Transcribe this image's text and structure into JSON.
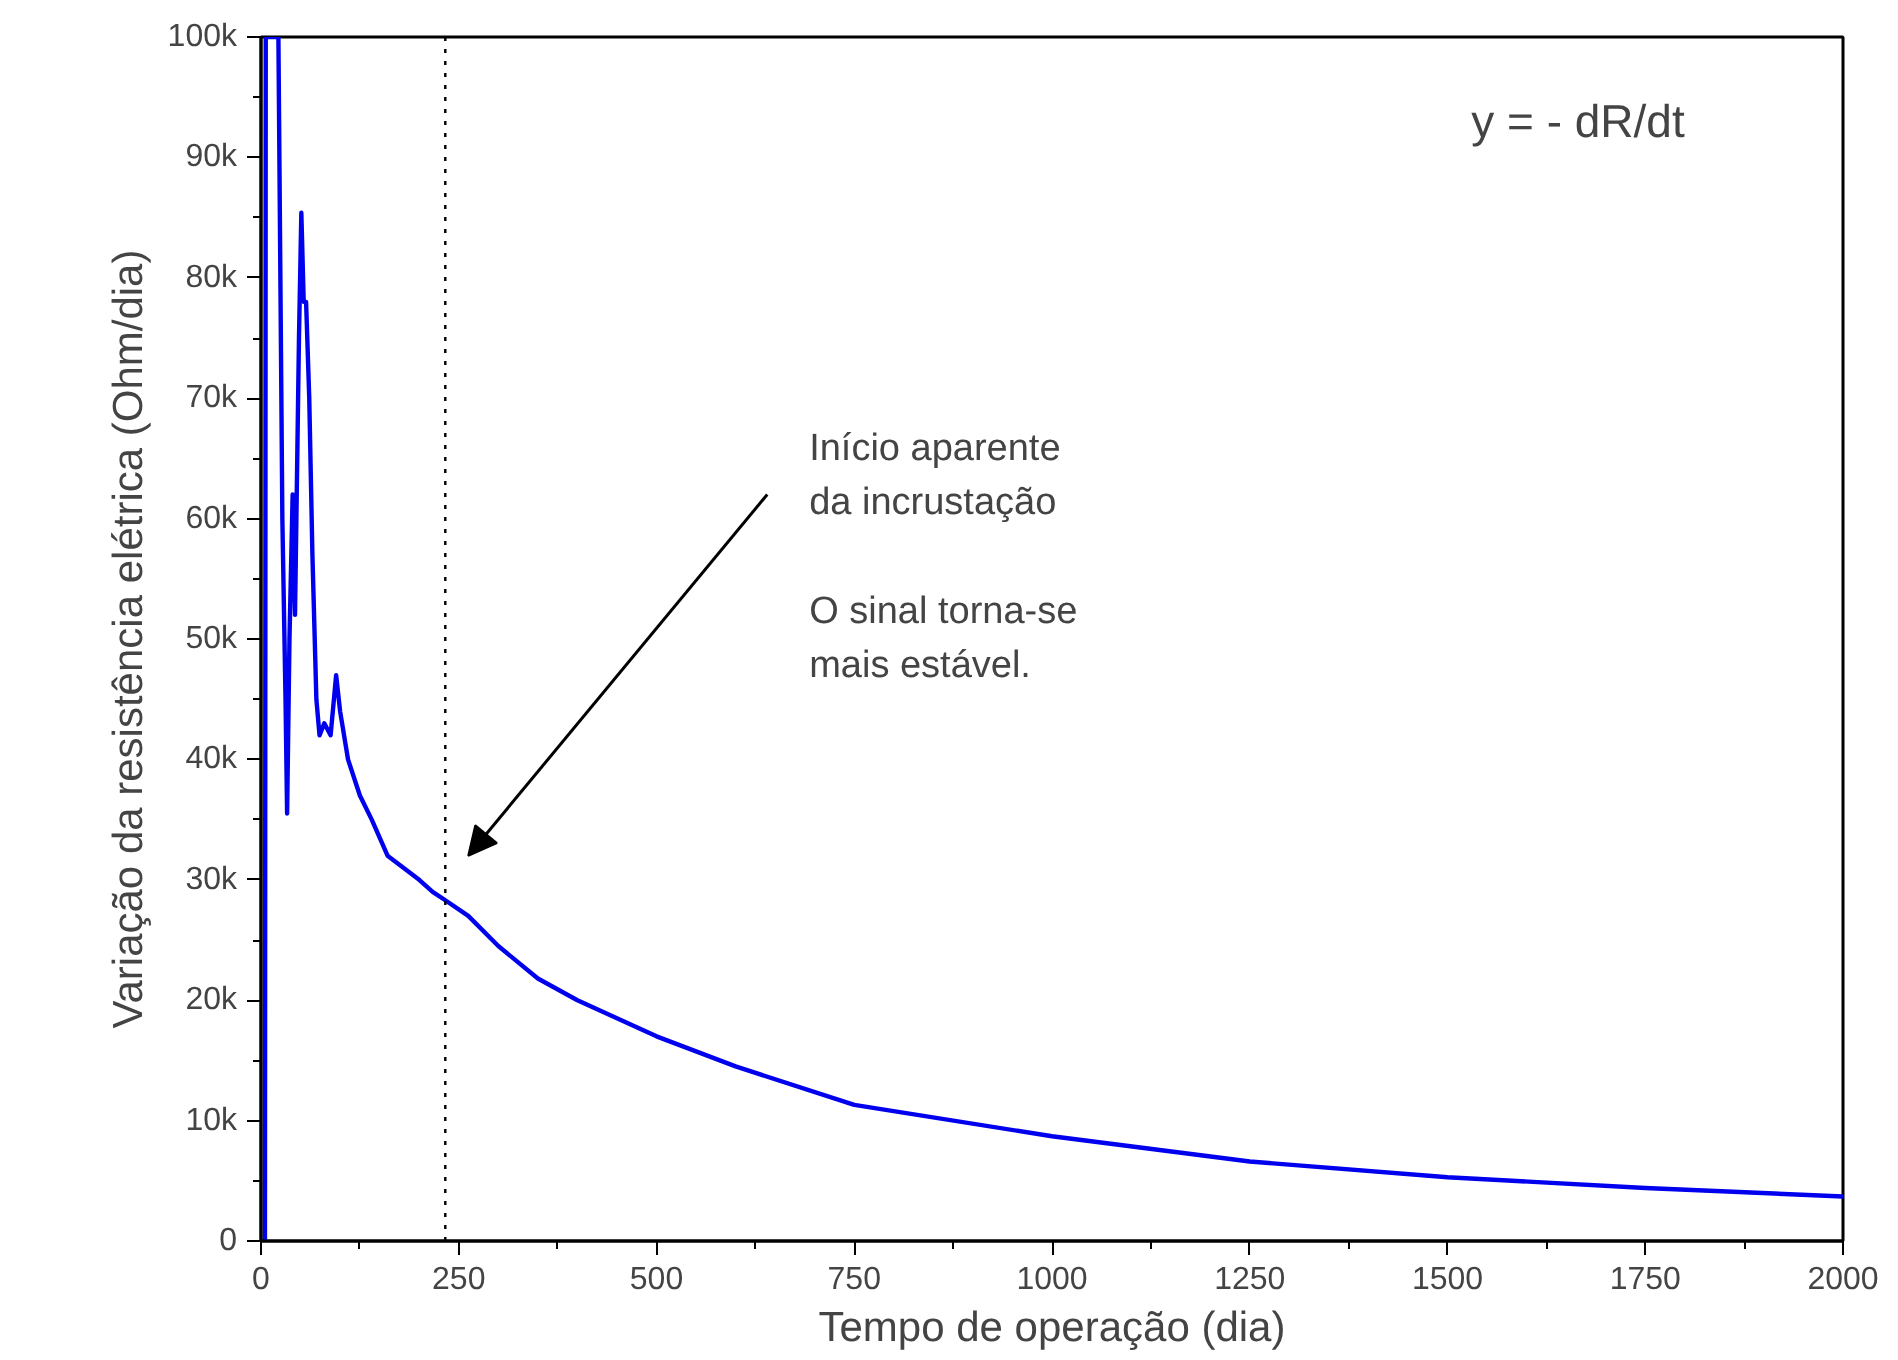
{
  "chart_data": {
    "type": "line",
    "xlabel": "Tempo de operação (dia)",
    "ylabel": "Variação da resistência elétrica (Ohm/dia)",
    "x": [
      0,
      5,
      6,
      22,
      27,
      31,
      33,
      36,
      40,
      43,
      48,
      51,
      54,
      57,
      61,
      65,
      70,
      74,
      80,
      88,
      95,
      100,
      110,
      125,
      140,
      160,
      180,
      200,
      217,
      233,
      262,
      300,
      350,
      400,
      500,
      600,
      750,
      1000,
      1250,
      1500,
      1750,
      2000
    ],
    "series": [
      {
        "color": "#0000ee",
        "values": [
          0,
          0,
          100000,
          100000,
          60000,
          45000,
          35500,
          50000,
          62000,
          52000,
          75000,
          85400,
          78000,
          78000,
          70000,
          57000,
          45000,
          42000,
          43000,
          42000,
          47000,
          44000,
          40000,
          37000,
          35000,
          32000,
          31000,
          30000,
          29000,
          28300,
          27000,
          24500,
          21800,
          20000,
          17000,
          14500,
          11300,
          8700,
          6600,
          5300,
          4400,
          3700
        ]
      }
    ],
    "xlim": [
      0,
      2000
    ],
    "ylim": [
      0,
      100000
    ],
    "xticks": [
      0,
      {
        "value": 125,
        "label": null
      },
      250,
      {
        "value": 375,
        "label": null
      },
      500,
      {
        "value": 625,
        "label": null
      },
      750,
      {
        "value": 875,
        "label": null
      },
      1000,
      {
        "value": 1125,
        "label": null
      },
      1250,
      {
        "value": 1375,
        "label": null
      },
      1500,
      {
        "value": 1625,
        "label": null
      },
      1750,
      {
        "value": 1875,
        "label": null
      },
      2000
    ],
    "yticks": [
      0,
      {
        "value": 5000,
        "label": null
      },
      {
        "value": 10000,
        "label": "10k"
      },
      {
        "value": 15000,
        "label": null
      },
      {
        "value": 20000,
        "label": "20k"
      },
      {
        "value": 25000,
        "label": null
      },
      {
        "value": 30000,
        "label": "30k"
      },
      {
        "value": 35000,
        "label": null
      },
      {
        "value": 40000,
        "label": "40k"
      },
      {
        "value": 45000,
        "label": null
      },
      {
        "value": 50000,
        "label": "50k"
      },
      {
        "value": 55000,
        "label": null
      },
      {
        "value": 60000,
        "label": "60k"
      },
      {
        "value": 65000,
        "label": null
      },
      {
        "value": 70000,
        "label": "70k"
      },
      {
        "value": 75000,
        "label": null
      },
      {
        "value": 80000,
        "label": "80k"
      },
      {
        "value": 85000,
        "label": null
      },
      {
        "value": 90000,
        "label": "90k"
      },
      {
        "value": 95000,
        "label": null
      },
      {
        "value": 100000,
        "label": "100k"
      }
    ],
    "ref_lines": [
      {
        "axis": "x",
        "value": 233,
        "color": "#000000",
        "line_style": "dotted"
      }
    ],
    "annotations": [
      "Início aparente",
      "da incrustação",
      "O sinal torna-se",
      "mais estável.",
      "y = - dR/dt"
    ],
    "grid": false,
    "marker": "none",
    "line_style": "solid"
  }
}
